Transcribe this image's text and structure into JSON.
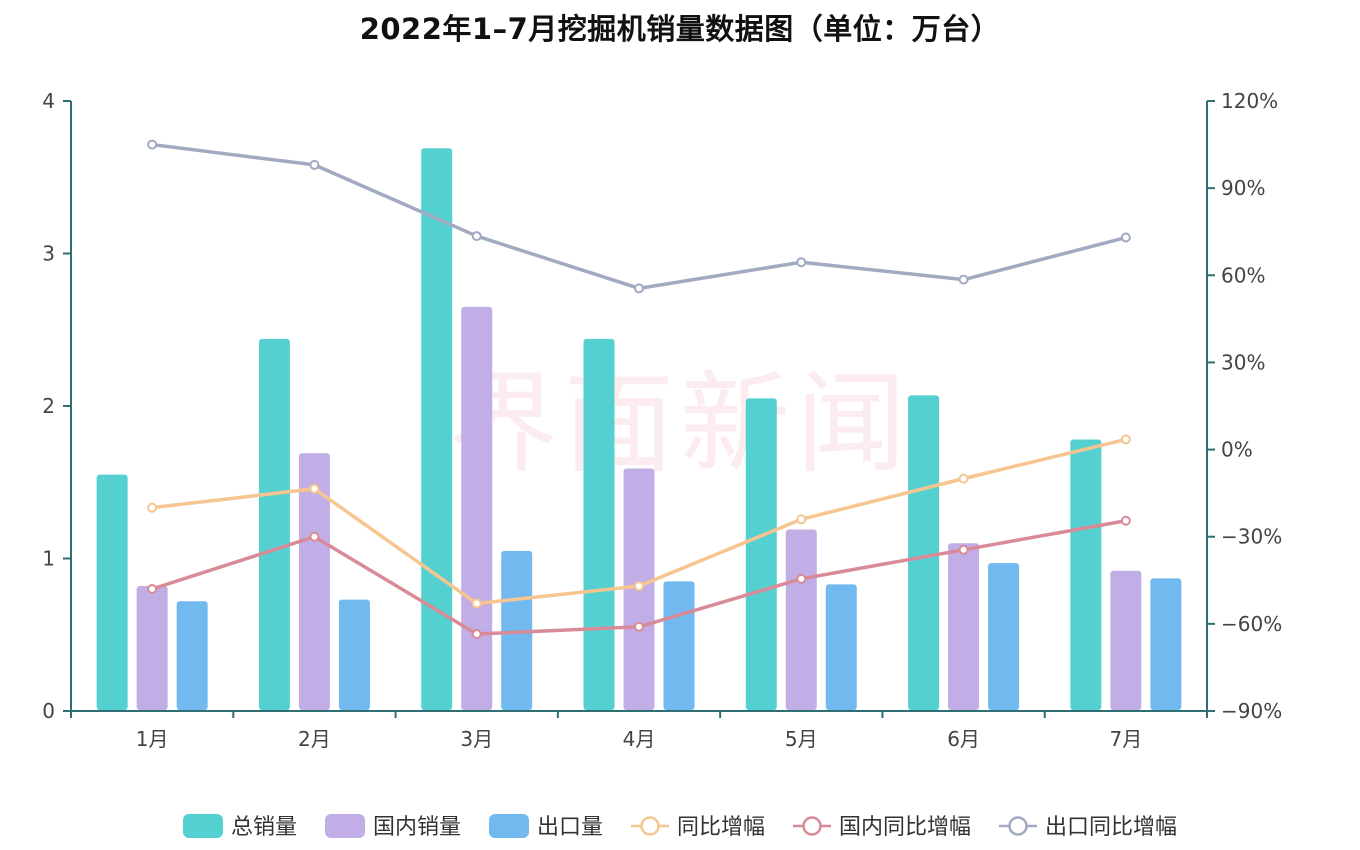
{
  "title": "2022年1–7月挖掘机销量数据图（单位：万台）",
  "watermark": "界面新闻",
  "colors": {
    "total": "#55d0d0",
    "domestic": "#c1aee6",
    "export": "#72b9f0",
    "yoy": "#f6c590",
    "domestic_yoy": "#d98a97",
    "export_yoy": "#a1aac0",
    "axis": "#2f6f73"
  },
  "chart_data": {
    "type": "bar",
    "title": "2022年1–7月挖掘机销量数据图（单位：万台）",
    "categories": [
      "1月",
      "2月",
      "3月",
      "4月",
      "5月",
      "6月",
      "7月"
    ],
    "ylim": [
      0,
      4
    ],
    "yticks": [
      0,
      1,
      2,
      3,
      4
    ],
    "y2lim": [
      -90,
      120
    ],
    "y2ticks": [
      -90,
      -60,
      -30,
      0,
      30,
      60,
      90,
      120
    ],
    "y2tick_labels": [
      "−90%",
      "−60%",
      "−30%",
      "0%",
      "30%",
      "60%",
      "90%",
      "120%"
    ],
    "series": [
      {
        "name": "总销量",
        "kind": "bar",
        "axis": "left",
        "color_key": "total",
        "icon": "rounded-rect",
        "values": [
          1.55,
          2.44,
          3.69,
          2.44,
          2.05,
          2.07,
          1.78
        ]
      },
      {
        "name": "国内销量",
        "kind": "bar",
        "axis": "left",
        "color_key": "domestic",
        "icon": "rounded-rect",
        "values": [
          0.82,
          1.69,
          2.65,
          1.59,
          1.19,
          1.1,
          0.92
        ]
      },
      {
        "name": "出口量",
        "kind": "bar",
        "axis": "left",
        "color_key": "export",
        "icon": "rounded-rect",
        "values": [
          0.72,
          0.73,
          1.05,
          0.85,
          0.83,
          0.97,
          0.87
        ]
      },
      {
        "name": "同比增幅",
        "kind": "line",
        "axis": "right",
        "color_key": "yoy",
        "icon": "line-circle",
        "values": [
          -20,
          -13.5,
          -53,
          -47,
          -24,
          -10,
          3.5
        ]
      },
      {
        "name": "国内同比增幅",
        "kind": "line",
        "axis": "right",
        "color_key": "domestic_yoy",
        "icon": "line-circle",
        "values": [
          -48,
          -30,
          -63.5,
          -61,
          -44.5,
          -34.5,
          -24.5
        ]
      },
      {
        "name": "出口同比增幅",
        "kind": "line",
        "axis": "right",
        "color_key": "export_yoy",
        "icon": "line-circle",
        "values": [
          105,
          98,
          73.5,
          55.5,
          64.5,
          58.5,
          73
        ]
      }
    ],
    "legend_position": "bottom-center",
    "grid": false
  }
}
